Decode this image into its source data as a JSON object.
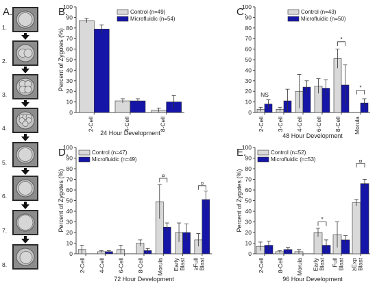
{
  "colors": {
    "control": "#d9d9d9",
    "microfluidic": "#1515a8",
    "axis": "#444444"
  },
  "left_column": {
    "label": "A.",
    "stage_labels": [
      "1.",
      "2.",
      "3.",
      "4.",
      "5.",
      "6.",
      "7.",
      "8."
    ],
    "stage_label_colors": [
      "#222222",
      "#222222",
      "#222222",
      "#222222",
      "#222222",
      "#222222",
      "#4a6a8a",
      "#222222"
    ]
  },
  "chart_data": [
    {
      "id": "B",
      "panel_label": "B.",
      "type": "bar",
      "xlabel": "24 Hour Development",
      "ylabel": "Percent of Zygotes (%)",
      "ylim": [
        0,
        100
      ],
      "yticks": [
        0,
        10,
        20,
        30,
        40,
        50,
        60,
        70,
        80,
        90,
        100
      ],
      "legend_placement": "top-right",
      "categories": [
        [
          "2-Cell"
        ],
        [
          "4-Cell"
        ],
        [
          "8-Cell"
        ]
      ],
      "series": [
        {
          "name": "Control (n=49)",
          "values": [
            87,
            11,
            2
          ],
          "errors": [
            2,
            2,
            2
          ]
        },
        {
          "name": "Microfluidic (n=54)",
          "values": [
            79,
            11,
            10
          ],
          "errors": [
            4,
            2,
            6
          ]
        }
      ],
      "annotations": []
    },
    {
      "id": "C",
      "panel_label": "C.",
      "type": "bar",
      "xlabel": "48 Hour Development",
      "ylabel": "",
      "ylim": [
        0,
        100
      ],
      "yticks": [
        0,
        10,
        20,
        30,
        40,
        50,
        60,
        70,
        80,
        90,
        100
      ],
      "legend_placement": "top-right",
      "categories": [
        [
          "2-Cell"
        ],
        [
          "3-Cell"
        ],
        [
          "4-Cell"
        ],
        [
          "6-Cell"
        ],
        [
          "8-Cell"
        ],
        [
          "Morula"
        ]
      ],
      "series": [
        {
          "name": "Control (n=43)",
          "values": [
            3,
            3,
            20,
            25,
            51,
            0
          ],
          "errors": [
            2,
            2,
            16,
            7,
            9,
            0
          ]
        },
        {
          "name": "Microfluidic (n=50)",
          "values": [
            8,
            11,
            24,
            23,
            26,
            9
          ],
          "errors": [
            4,
            11,
            6,
            8,
            19,
            4
          ]
        }
      ],
      "annotations": [
        {
          "cat": 0,
          "text": "NS",
          "y": 15
        },
        {
          "cat": 4,
          "text": "*",
          "y": 67,
          "bracket": true
        },
        {
          "cat": 5,
          "text": "*",
          "y": 21,
          "bracket": true
        }
      ]
    },
    {
      "id": "D",
      "panel_label": "D.",
      "type": "bar",
      "xlabel": "72 Hour Development",
      "ylabel": "Percent of Zygotes (%)",
      "ylim": [
        0,
        100
      ],
      "yticks": [
        0,
        10,
        20,
        30,
        40,
        50,
        60,
        70,
        80,
        90,
        100
      ],
      "legend_placement": "top-left",
      "categories": [
        [
          "2-Cell"
        ],
        [
          "4-Cell"
        ],
        [
          "6-Cell"
        ],
        [
          "8-Cell"
        ],
        [
          "Morula"
        ],
        [
          "Early",
          "Blast"
        ],
        [
          "≥Full",
          "Blast"
        ]
      ],
      "series": [
        {
          "name": "Control (n=47)",
          "values": [
            4,
            2,
            4,
            10,
            49,
            20,
            13
          ],
          "errors": [
            4,
            1,
            4,
            3,
            16,
            9,
            6
          ]
        },
        {
          "name": "Microfluidic (n=49)",
          "values": [
            0,
            2,
            0,
            3,
            25,
            20,
            51
          ],
          "errors": [
            0,
            1,
            0,
            2,
            4,
            8,
            8
          ]
        }
      ],
      "annotations": [
        {
          "cat": 4,
          "text": "¤",
          "y": 71,
          "bracket": true
        },
        {
          "cat": 6,
          "text": "¤",
          "y": 64,
          "bracket": true
        }
      ]
    },
    {
      "id": "E",
      "panel_label": "E.",
      "type": "bar",
      "xlabel": "96 Hour Development",
      "ylabel": "Percent of Zygotes (%)",
      "ylim": [
        0,
        100
      ],
      "yticks": [
        0,
        10,
        20,
        30,
        40,
        50,
        60,
        70,
        80,
        90,
        100
      ],
      "legend_placement": "top-left",
      "categories": [
        [
          "2-Cell"
        ],
        [
          "8-Cell"
        ],
        [
          "Morula"
        ],
        [
          "Early",
          "Blast"
        ],
        [
          "Full",
          "Blast"
        ],
        [
          "≥Exp",
          "Blast"
        ]
      ],
      "series": [
        {
          "name": "Control (n=52)",
          "values": [
            7,
            2,
            2,
            20,
            18,
            48
          ],
          "errors": [
            4,
            1,
            2,
            4,
            12,
            3
          ]
        },
        {
          "name": "Microfluidic (n=53)",
          "values": [
            8,
            4,
            0,
            8,
            13,
            66
          ],
          "errors": [
            4,
            2,
            0,
            5,
            4,
            4
          ]
        }
      ],
      "annotations": [
        {
          "cat": 3,
          "text": "*",
          "y": 30,
          "bracket": true
        },
        {
          "cat": 5,
          "text": "¤",
          "y": 85,
          "bracket": true
        }
      ]
    }
  ]
}
